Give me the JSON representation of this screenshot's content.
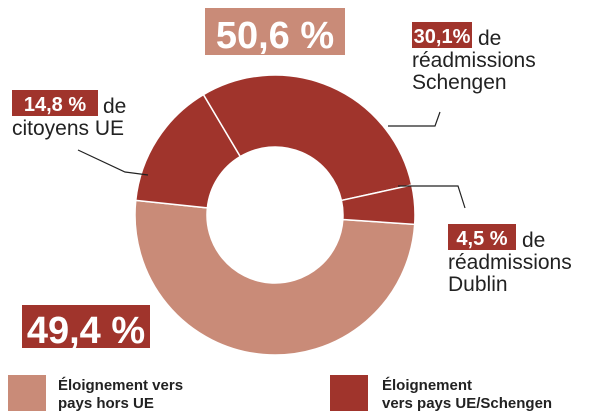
{
  "chart_data": {
    "type": "donut",
    "groups": [
      {
        "name_lines": [
          "Éloignement vers",
          "pays hors UE"
        ],
        "color": "#c98b78",
        "value": 50.6,
        "value_label": "50,6 %"
      },
      {
        "name_lines": [
          "Éloignement",
          "vers pays UE/Schengen"
        ],
        "color": "#a0342c",
        "value": 49.4,
        "value_label": "49,4 %",
        "parts": [
          {
            "value": 14.8,
            "value_label": "14,8 %",
            "label_lines": [
              "de",
              "citoyens UE"
            ]
          },
          {
            "value": 30.1,
            "value_label": "30,1%",
            "label_lines": [
              "de",
              "réadmissions",
              "Schengen"
            ]
          },
          {
            "value": 4.5,
            "value_label": "4,5 %",
            "label_lines": [
              "de",
              "réadmissions",
              "Dublin"
            ]
          }
        ]
      }
    ]
  }
}
